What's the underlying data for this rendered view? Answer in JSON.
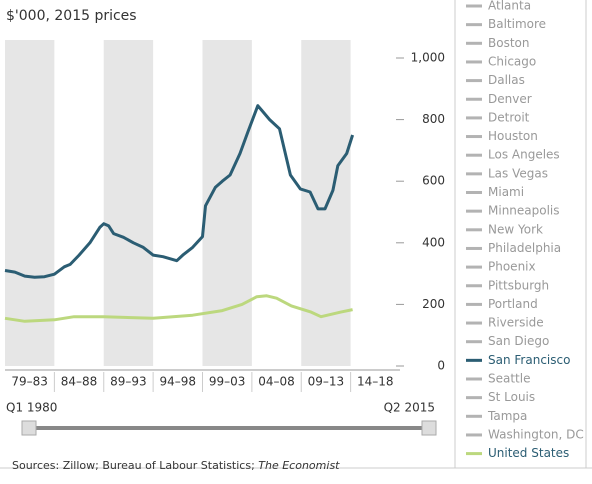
{
  "chart_data": {
    "type": "line",
    "title": "$'000, 2015 prices",
    "xlim": [
      1980,
      2020
    ],
    "ylim": [
      0,
      1000
    ],
    "yticks": [
      0,
      200,
      400,
      600,
      800,
      {
        "value": 1000,
        "label": "1,000"
      }
    ],
    "categories": [
      "79–83",
      "84–88",
      "89–93",
      "94–98",
      "99–03",
      "04–08",
      "09–13",
      "14–18"
    ],
    "band_color": "#e6e6e6",
    "series": [
      {
        "name": "Atlanta",
        "color": "#b3b3b3",
        "visible": false
      },
      {
        "name": "Baltimore",
        "color": "#b3b3b3",
        "visible": false
      },
      {
        "name": "Boston",
        "color": "#b3b3b3",
        "visible": false
      },
      {
        "name": "Chicago",
        "color": "#b3b3b3",
        "visible": false
      },
      {
        "name": "Dallas",
        "color": "#b3b3b3",
        "visible": false
      },
      {
        "name": "Denver",
        "color": "#b3b3b3",
        "visible": false
      },
      {
        "name": "Detroit",
        "color": "#b3b3b3",
        "visible": false
      },
      {
        "name": "Houston",
        "color": "#b3b3b3",
        "visible": false
      },
      {
        "name": "Los Angeles",
        "color": "#b3b3b3",
        "visible": false
      },
      {
        "name": "Las Vegas",
        "color": "#b3b3b3",
        "visible": false
      },
      {
        "name": "Miami",
        "color": "#b3b3b3",
        "visible": false
      },
      {
        "name": "Minneapolis",
        "color": "#b3b3b3",
        "visible": false
      },
      {
        "name": "New York",
        "color": "#b3b3b3",
        "visible": false
      },
      {
        "name": "Philadelphia",
        "color": "#b3b3b3",
        "visible": false
      },
      {
        "name": "Phoenix",
        "color": "#b3b3b3",
        "visible": false
      },
      {
        "name": "Pittsburgh",
        "color": "#b3b3b3",
        "visible": false
      },
      {
        "name": "Portland",
        "color": "#b3b3b3",
        "visible": false
      },
      {
        "name": "Riverside",
        "color": "#b3b3b3",
        "visible": false
      },
      {
        "name": "San Diego",
        "color": "#b3b3b3",
        "visible": false
      },
      {
        "name": "San Francisco",
        "color": "#2b5d73",
        "visible": true,
        "x": [
          1980,
          1981,
          1982,
          1983,
          1984,
          1985,
          1986,
          1986.6,
          1987.5,
          1988.6,
          1989.6,
          1990,
          1990.5,
          1991,
          1992,
          1993,
          1994,
          1995,
          1996,
          1997.4,
          1998,
          1999,
          2000,
          2000.3,
          2001.3,
          2002,
          2002.8,
          2003.8,
          2004.6,
          2005.6,
          2006,
          2006.8,
          2007.8,
          2008.9,
          2009.9,
          2010.9,
          2011.7,
          2012.4,
          2013.2,
          2013.7,
          2014.6,
          2015.2
        ],
        "values": [
          310,
          305,
          292,
          288,
          290,
          298,
          322,
          330,
          360,
          400,
          450,
          462,
          455,
          430,
          418,
          400,
          385,
          360,
          355,
          342,
          360,
          385,
          420,
          520,
          580,
          600,
          620,
          690,
          760,
          845,
          830,
          800,
          770,
          620,
          575,
          565,
          510,
          510,
          570,
          650,
          690,
          750
        ]
      },
      {
        "name": "Seattle",
        "color": "#b3b3b3",
        "visible": false
      },
      {
        "name": "St Louis",
        "color": "#b3b3b3",
        "visible": false
      },
      {
        "name": "Tampa",
        "color": "#b3b3b3",
        "visible": false
      },
      {
        "name": "Washington, DC",
        "color": "#b3b3b3",
        "visible": false
      },
      {
        "name": "United States",
        "color": "#bcd87e",
        "visible": true,
        "x": [
          1980,
          1982,
          1985,
          1987,
          1990,
          1995,
          1999,
          2002,
          2004,
          2005.5,
          2006.5,
          2007.5,
          2009,
          2011,
          2012,
          2014,
          2015.2
        ],
        "values": [
          155,
          145,
          150,
          160,
          160,
          155,
          165,
          180,
          200,
          225,
          228,
          220,
          195,
          175,
          160,
          175,
          183
        ]
      }
    ],
    "slider": {
      "start": "Q1 1980",
      "end": "Q2 2015"
    },
    "source": {
      "text": "Sources: Zillow; Bureau of Labour Statistics; ",
      "italic": "The Economist"
    }
  }
}
